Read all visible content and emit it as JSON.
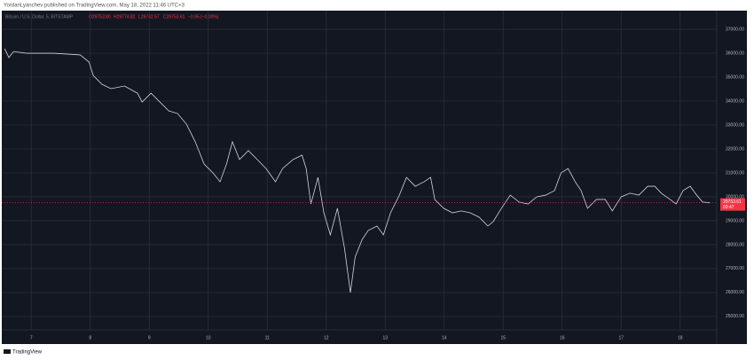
{
  "header": "YordanLyanchev published on TradingView.com, May 18, 2022 11:46 UTC+3",
  "footer": "TradingView",
  "chart_data": {
    "type": "line",
    "legend_values": [
      "O29753.80",
      "H29774.82",
      "L29742.57",
      "C29753.61",
      "−0.95 (−0.00%)"
    ],
    "x": [
      6.55,
      6.62,
      6.7,
      6.92,
      7.38,
      7.83,
      7.98,
      8.05,
      8.2,
      8.35,
      8.58,
      8.8,
      8.88,
      9.03,
      9.18,
      9.33,
      9.48,
      9.63,
      9.78,
      9.93,
      10.08,
      10.2,
      10.31,
      10.41,
      10.53,
      10.68,
      10.83,
      10.98,
      11.14,
      11.26,
      11.44,
      11.59,
      11.66,
      11.74,
      11.86,
      11.96,
      12.07,
      12.19,
      12.31,
      12.41,
      12.49,
      12.61,
      12.71,
      12.86,
      12.97,
      13.09,
      13.24,
      13.36,
      13.51,
      13.66,
      13.77,
      13.84,
      13.99,
      14.14,
      14.29,
      14.44,
      14.59,
      14.74,
      14.83,
      14.97,
      15.12,
      15.27,
      15.42,
      15.57,
      15.72,
      15.87,
      15.98,
      16.1,
      16.22,
      16.32,
      16.43,
      16.58,
      16.73,
      16.85,
      17.0,
      17.15,
      17.3,
      17.45,
      17.57,
      17.68,
      17.83,
      17.93,
      18.05,
      18.17,
      18.28,
      18.38,
      18.5
    ],
    "series": [
      {
        "name": "Bitcoin / U.S. Dollar, 5, BITSTAMP",
        "color": "#d1d4dc",
        "values": [
          36190,
          35820,
          36070,
          36000,
          36000,
          35930,
          35630,
          35070,
          34700,
          34520,
          34630,
          34330,
          33960,
          34330,
          33960,
          33590,
          33480,
          33040,
          32300,
          31370,
          31000,
          30630,
          31370,
          32300,
          31560,
          31930,
          31560,
          31180,
          30630,
          31180,
          31560,
          31740,
          31180,
          29700,
          30810,
          29330,
          28410,
          29520,
          27850,
          26000,
          27480,
          28220,
          28590,
          28780,
          28410,
          29330,
          30070,
          30810,
          30440,
          30630,
          30810,
          29890,
          29520,
          29330,
          29410,
          29330,
          29150,
          28780,
          28960,
          29520,
          30070,
          29780,
          29700,
          30000,
          30070,
          30260,
          31000,
          31180,
          30630,
          30260,
          29520,
          29890,
          29890,
          29410,
          30000,
          30150,
          30070,
          30440,
          30440,
          30150,
          29890,
          29700,
          30260,
          30440,
          30070,
          29780,
          29750
        ]
      }
    ],
    "last_price": 29753.61,
    "last_price_color": "#f23645",
    "countdown": "03:47",
    "xlim": [
      6.5,
      18.62
    ],
    "xticks": [
      7,
      8,
      9,
      10,
      11,
      12,
      13,
      14,
      15,
      16,
      17,
      18
    ],
    "ylim": [
      24440,
      37780
    ],
    "yticks": [
      {
        "value": 25000,
        "label": "25000.00"
      },
      {
        "value": 26000,
        "label": "26000.00"
      },
      {
        "value": 27000,
        "label": "27000.00"
      },
      {
        "value": 28000,
        "label": "28000.00"
      },
      {
        "value": 29000,
        "label": "29000.00"
      },
      {
        "value": 30000,
        "label": "30000.00"
      },
      {
        "value": 31000,
        "label": "31000.00"
      },
      {
        "value": 32000,
        "label": "32000.00"
      },
      {
        "value": 33000,
        "label": "33000.00"
      },
      {
        "value": 34000,
        "label": "34000.00"
      },
      {
        "value": 35000,
        "label": "35000.00"
      },
      {
        "value": 36000,
        "label": "36000.00"
      },
      {
        "value": 37000,
        "label": "37000.00"
      }
    ],
    "grid": true
  }
}
